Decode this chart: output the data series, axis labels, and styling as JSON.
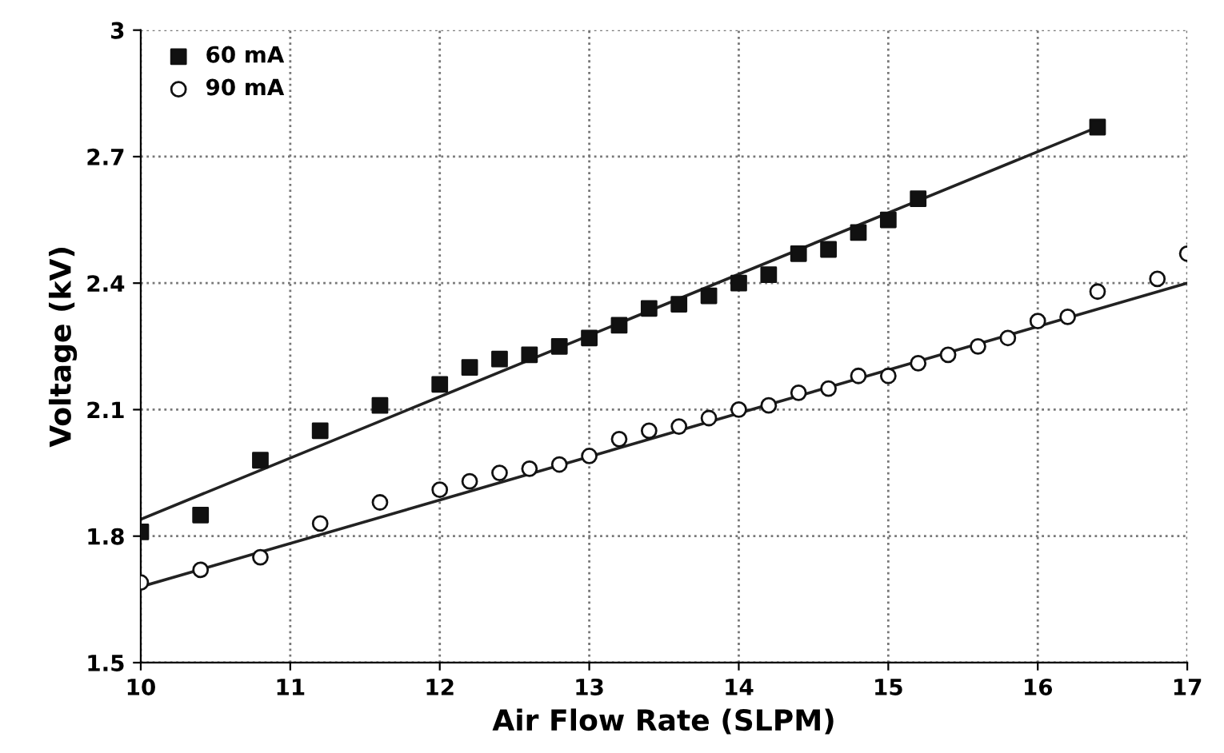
{
  "chart_data": {
    "type": "scatter",
    "xlabel": "Air Flow Rate (SLPM)",
    "ylabel": "Voltage (kV)",
    "xlim": [
      10,
      17
    ],
    "ylim": [
      1.5,
      3
    ],
    "xticks": [
      10,
      11,
      12,
      13,
      14,
      15,
      16,
      17
    ],
    "yticks": [
      1.5,
      1.8,
      2.1,
      2.4,
      2.7,
      3
    ],
    "grid": true,
    "legend": "top left",
    "series": [
      {
        "name": "60 mA",
        "color": "#111111",
        "marker": "square",
        "x": [
          10,
          10.4,
          10.8,
          11.2,
          11.6,
          12,
          12.2,
          12.4,
          12.6,
          12.8,
          13,
          13.2,
          13.4,
          13.6,
          13.8,
          14,
          14.2,
          14.4,
          14.6,
          14.8,
          15,
          15.2,
          16.4
        ],
        "values": [
          1.81,
          1.85,
          1.98,
          2.05,
          2.11,
          2.16,
          2.2,
          2.22,
          2.23,
          2.25,
          2.27,
          2.3,
          2.34,
          2.35,
          2.37,
          2.4,
          2.42,
          2.47,
          2.48,
          2.52,
          2.55,
          2.6,
          2.77
        ]
      },
      {
        "name": "90 mA",
        "color": "#111111",
        "marker": "circle",
        "x": [
          10,
          10.4,
          10.8,
          11.2,
          11.6,
          12,
          12.2,
          12.4,
          12.6,
          12.8,
          13,
          13.2,
          13.4,
          13.6,
          13.8,
          14,
          14.2,
          14.4,
          14.6,
          14.8,
          15,
          15.2,
          15.4,
          15.6,
          15.8,
          16,
          16.2,
          16.4,
          16.8,
          17
        ],
        "values": [
          1.69,
          1.72,
          1.75,
          1.83,
          1.88,
          1.91,
          1.93,
          1.95,
          1.96,
          1.97,
          1.99,
          2.03,
          2.05,
          2.06,
          2.08,
          2.1,
          2.11,
          2.14,
          2.15,
          2.18,
          2.18,
          2.21,
          2.23,
          2.25,
          2.27,
          2.31,
          2.32,
          2.38,
          2.41,
          2.47
        ]
      },
      {
        "type": "line",
        "color": "#222222",
        "marker": "none",
        "line_style": "solid",
        "x": [
          10,
          16.4
        ],
        "values": [
          1.84,
          2.77
        ]
      },
      {
        "type": "line",
        "color": "#222222",
        "marker": "none",
        "line_style": "solid",
        "x": [
          10,
          17
        ],
        "values": [
          1.68,
          2.4
        ]
      }
    ]
  }
}
